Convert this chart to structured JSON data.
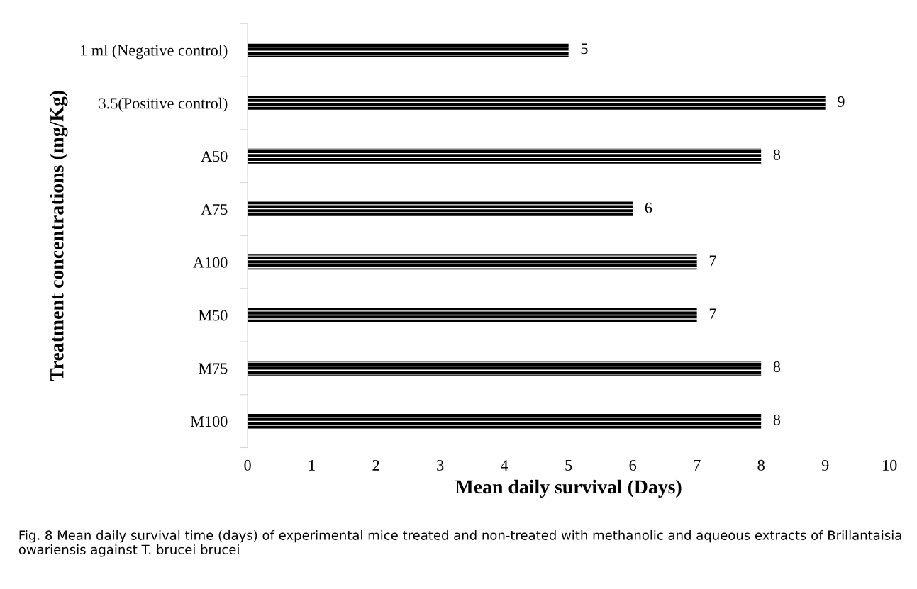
{
  "chart_data": {
    "type": "bar",
    "orientation": "horizontal",
    "categories": [
      "1 ml (Negative control)",
      "3.5(Positive control)",
      "A50",
      "A75",
      "A100",
      "M50",
      "M75",
      "M100"
    ],
    "values": [
      5,
      9,
      8,
      6,
      7,
      7,
      8,
      8
    ],
    "color": "#000000",
    "xlabel": "Mean daily survival (Days)",
    "ylabel": "Treatment concentrations (mg/Kg)",
    "xlim": [
      0,
      10
    ],
    "xticks": [
      0,
      1,
      2,
      3,
      4,
      5,
      6,
      7,
      8,
      9,
      10
    ],
    "data_labels": true,
    "grid": false,
    "annotations": [
      "Fig. 8 Mean daily survival time (days) of experimental mice treated and non-treated with methanolic and aqueous extracts of Brillantaisia owariensis against T. brucei brucei"
    ]
  }
}
